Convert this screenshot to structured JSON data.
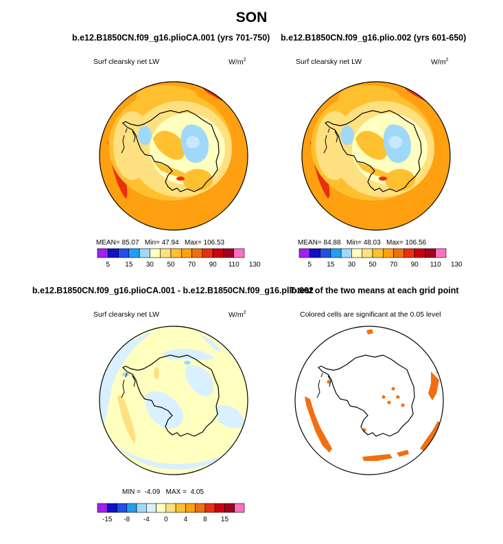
{
  "page_title": "SON",
  "panels": [
    {
      "title": "b.e12.B1850CN.f09_g16.plioCA.001 (yrs 701-750)",
      "variable": "Surf clearsky net LW",
      "units_base": "W/m",
      "units_exp": "2",
      "stats": {
        "mean_label": "MEAN=",
        "mean": "85.07",
        "min_label": "Min=",
        "min": "47.94",
        "max_label": "Max=",
        "max": "106.53"
      },
      "colorbar_labels": [
        "5",
        "15",
        "30",
        "50",
        "70",
        "90",
        "110",
        "130"
      ]
    },
    {
      "title": "b.e12.B1850CN.f09_g16.plio.002 (yrs 601-650)",
      "variable": "Surf clearsky net LW",
      "units_base": "W/m",
      "units_exp": "2",
      "stats": {
        "mean_label": "MEAN=",
        "mean": "84.88",
        "min_label": "Min=",
        "min": "48.03",
        "max_label": "Max=",
        "max": "106.56"
      },
      "colorbar_labels": [
        "5",
        "15",
        "30",
        "50",
        "70",
        "90",
        "110",
        "130"
      ]
    },
    {
      "title": "b.e12.B1850CN.f09_g16.plioCA.001 - b.e12.B1850CN.f09_g16.plio.002",
      "variable": "Surf clearsky net LW",
      "units_base": "W/m",
      "units_exp": "2",
      "stats": {
        "min_label": "MIN =",
        "min": "-4.09",
        "max_label": "MAX =",
        "max": "4.05"
      },
      "colorbar_labels": [
        "-15",
        "-8",
        "-4",
        "0",
        "4",
        "8",
        "15"
      ]
    },
    {
      "title": "T-test of the two means at each grid point",
      "subtitle": "Colored cells are significant at the 0.05 level"
    }
  ],
  "colors": {
    "abs_scale": [
      "#a020f0",
      "#1010c8",
      "#2050e8",
      "#20a0f0",
      "#a0d8f8",
      "#ffffc0",
      "#ffe080",
      "#ffc030",
      "#ffa010",
      "#f07010",
      "#e83010",
      "#c80010",
      "#a00020",
      "#ff70c0"
    ],
    "diff_scale": [
      "#a020f0",
      "#1010c8",
      "#2050e8",
      "#20a0f0",
      "#a0d8f8",
      "#d8f0ff",
      "#ffffc0",
      "#ffe080",
      "#ffc030",
      "#ffa010",
      "#f07010",
      "#e83010",
      "#c80010",
      "#a00020",
      "#ff70c0"
    ],
    "significant": "#f07010"
  },
  "chart_data": [
    {
      "type": "heatmap",
      "projection": "south-polar stereographic",
      "title": "b.e12.B1850CN.f09_g16.plioCA.001 (yrs 701-750)",
      "variable": "Surf clearsky net LW",
      "units": "W/m2",
      "season": "SON",
      "mean": 85.07,
      "min": 47.94,
      "max": 106.53,
      "contour_levels": [
        5,
        10,
        15,
        20,
        30,
        40,
        50,
        60,
        70,
        80,
        90,
        100,
        110,
        120,
        130
      ]
    },
    {
      "type": "heatmap",
      "projection": "south-polar stereographic",
      "title": "b.e12.B1850CN.f09_g16.plio.002 (yrs 601-650)",
      "variable": "Surf clearsky net LW",
      "units": "W/m2",
      "season": "SON",
      "mean": 84.88,
      "min": 48.03,
      "max": 106.56,
      "contour_levels": [
        5,
        10,
        15,
        20,
        30,
        40,
        50,
        60,
        70,
        80,
        90,
        100,
        110,
        120,
        130
      ]
    },
    {
      "type": "heatmap",
      "projection": "south-polar stereographic",
      "title": "b.e12.B1850CN.f09_g16.plioCA.001 - b.e12.B1850CN.f09_g16.plio.002",
      "variable": "Surf clearsky net LW",
      "units": "W/m2",
      "min": -4.09,
      "max": 4.05,
      "contour_levels": [
        -15,
        -12,
        -8,
        -6,
        -4,
        -2,
        0,
        2,
        4,
        6,
        8,
        12,
        15
      ]
    },
    {
      "type": "heatmap",
      "projection": "south-polar stereographic",
      "title": "T-test of the two means at each grid point",
      "subtitle": "Colored cells are significant at the 0.05 level",
      "significance_level": 0.05
    }
  ]
}
